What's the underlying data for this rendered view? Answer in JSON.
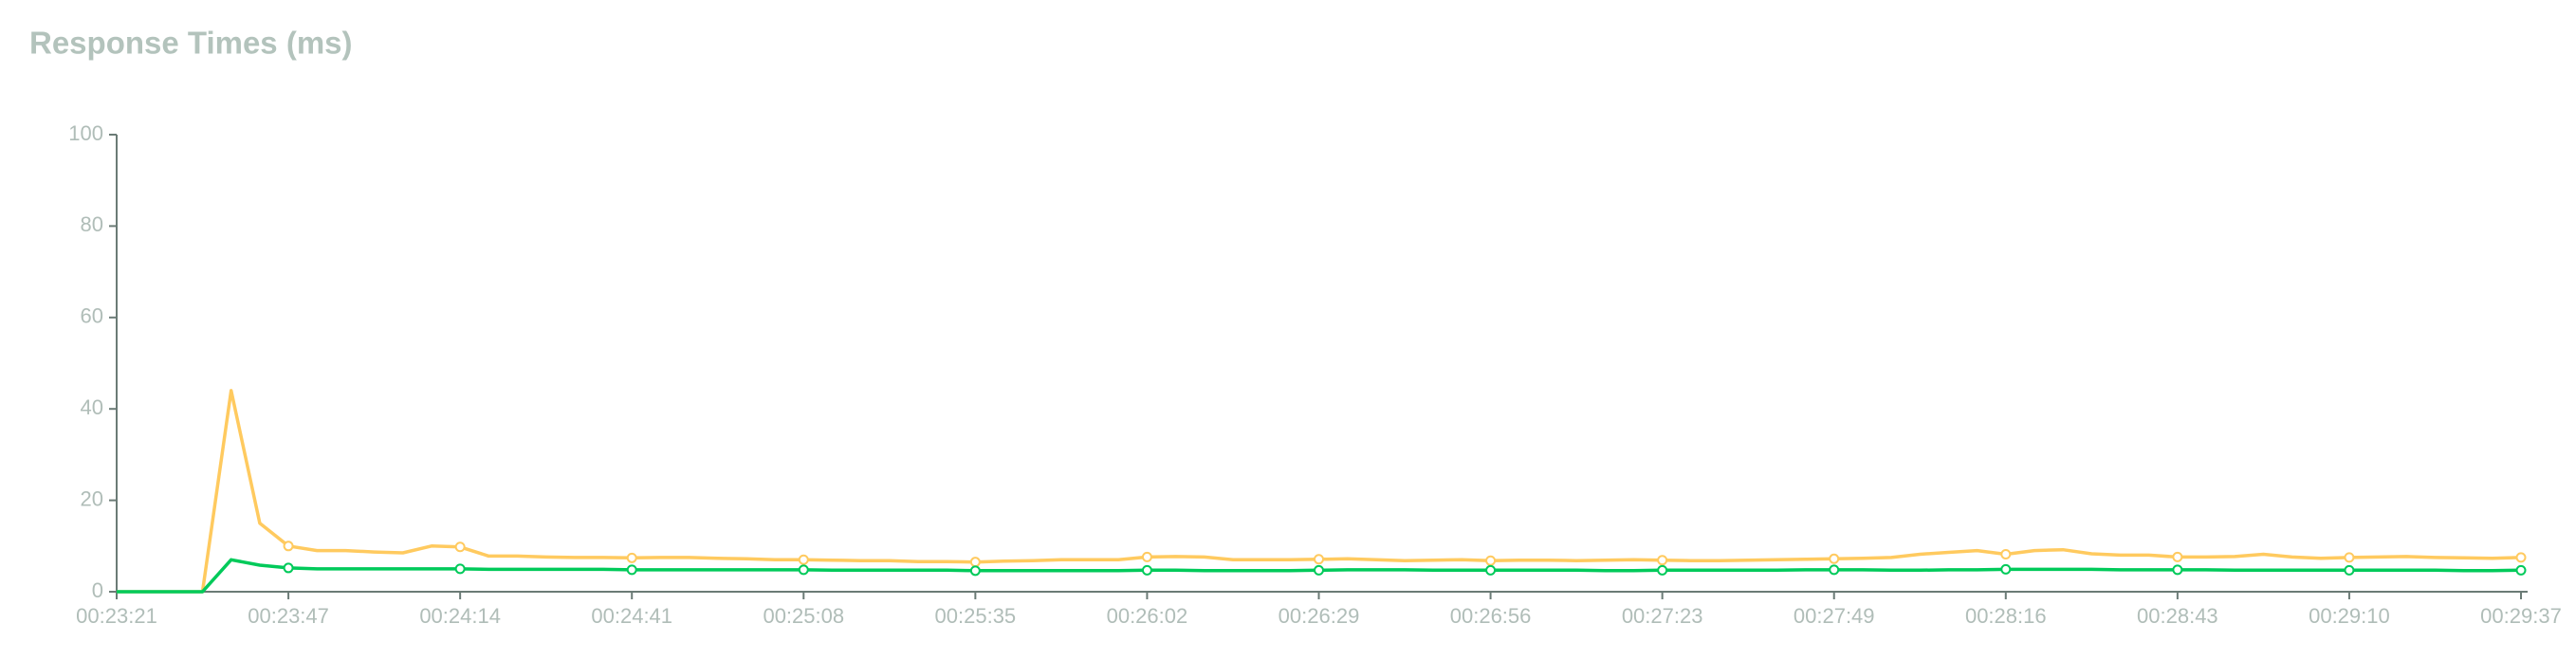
{
  "chart_data": {
    "type": "line",
    "title": "Response Times (ms)",
    "categories": [
      "00:23:21",
      null,
      null,
      null,
      null,
      null,
      "00:23:47",
      null,
      null,
      null,
      null,
      null,
      "00:24:14",
      null,
      null,
      null,
      null,
      null,
      "00:24:41",
      null,
      null,
      null,
      null,
      null,
      "00:25:08",
      null,
      null,
      null,
      null,
      null,
      "00:25:35",
      null,
      null,
      null,
      null,
      null,
      "00:26:02",
      null,
      null,
      null,
      null,
      null,
      "00:26:29",
      null,
      null,
      null,
      null,
      null,
      "00:26:56",
      null,
      null,
      null,
      null,
      null,
      "00:27:23",
      null,
      null,
      null,
      null,
      null,
      "00:27:49",
      null,
      null,
      null,
      null,
      null,
      "00:28:16",
      null,
      null,
      null,
      null,
      null,
      "00:28:43",
      null,
      null,
      null,
      null,
      null,
      "00:29:10",
      null,
      null,
      null,
      null,
      null,
      "00:29:37"
    ],
    "series": [
      {
        "color": "#ffca5f",
        "values": [
          0,
          0,
          0,
          0,
          44,
          15,
          10,
          9,
          9,
          8.7,
          8.5,
          10,
          9.8,
          7.8,
          7.8,
          7.6,
          7.5,
          7.5,
          7.4,
          7.5,
          7.5,
          7.3,
          7.2,
          7,
          7,
          6.9,
          6.8,
          6.8,
          6.6,
          6.6,
          6.5,
          6.7,
          6.8,
          7,
          7,
          7,
          7.6,
          7.7,
          7.6,
          7,
          7,
          7,
          7.1,
          7.2,
          7,
          6.8,
          6.9,
          7,
          6.8,
          6.9,
          6.9,
          6.8,
          6.9,
          7,
          6.9,
          6.8,
          6.8,
          6.9,
          7,
          7.1,
          7.2,
          7.3,
          7.5,
          8.2,
          8.6,
          9,
          8.2,
          9,
          9.2,
          8.3,
          8,
          8,
          7.6,
          7.6,
          7.7,
          8.2,
          7.6,
          7.3,
          7.5,
          7.6,
          7.7,
          7.5,
          7.4,
          7.3,
          7.5
        ]
      },
      {
        "color": "#00ca5a",
        "values": [
          0,
          0,
          0,
          0,
          7,
          5.8,
          5.2,
          5,
          5,
          5,
          5,
          5,
          5,
          4.9,
          4.9,
          4.9,
          4.9,
          4.9,
          4.8,
          4.8,
          4.8,
          4.8,
          4.8,
          4.8,
          4.8,
          4.7,
          4.7,
          4.7,
          4.7,
          4.7,
          4.6,
          4.6,
          4.6,
          4.6,
          4.6,
          4.6,
          4.7,
          4.7,
          4.6,
          4.6,
          4.6,
          4.6,
          4.7,
          4.8,
          4.8,
          4.8,
          4.7,
          4.7,
          4.7,
          4.7,
          4.7,
          4.7,
          4.6,
          4.6,
          4.7,
          4.7,
          4.7,
          4.7,
          4.7,
          4.8,
          4.8,
          4.8,
          4.7,
          4.7,
          4.8,
          4.8,
          4.9,
          4.9,
          4.9,
          4.9,
          4.8,
          4.8,
          4.8,
          4.8,
          4.7,
          4.7,
          4.7,
          4.7,
          4.7,
          4.7,
          4.7,
          4.7,
          4.6,
          4.6,
          4.7
        ]
      }
    ],
    "ylim": [
      0,
      100
    ],
    "yticks": [
      0,
      20,
      40,
      60,
      80,
      100
    ]
  }
}
